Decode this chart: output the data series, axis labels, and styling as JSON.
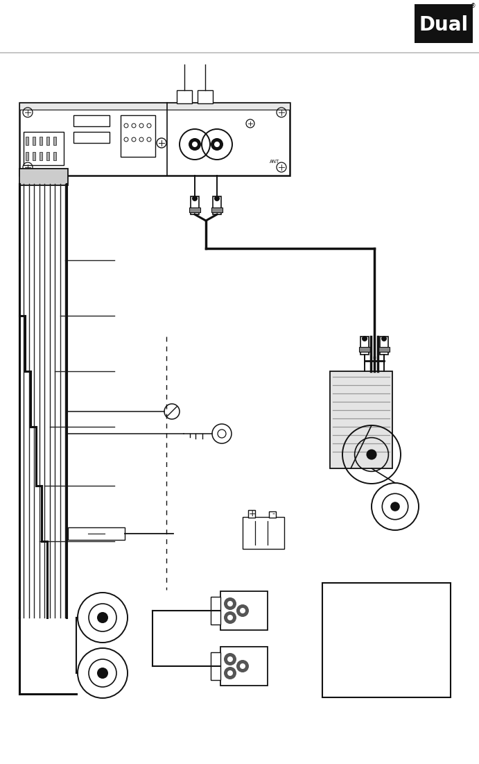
{
  "bg": "#ffffff",
  "lc": "#111111",
  "fig_w": 6.91,
  "fig_h": 11.01,
  "dpi": 100,
  "logo_text": "Dual"
}
